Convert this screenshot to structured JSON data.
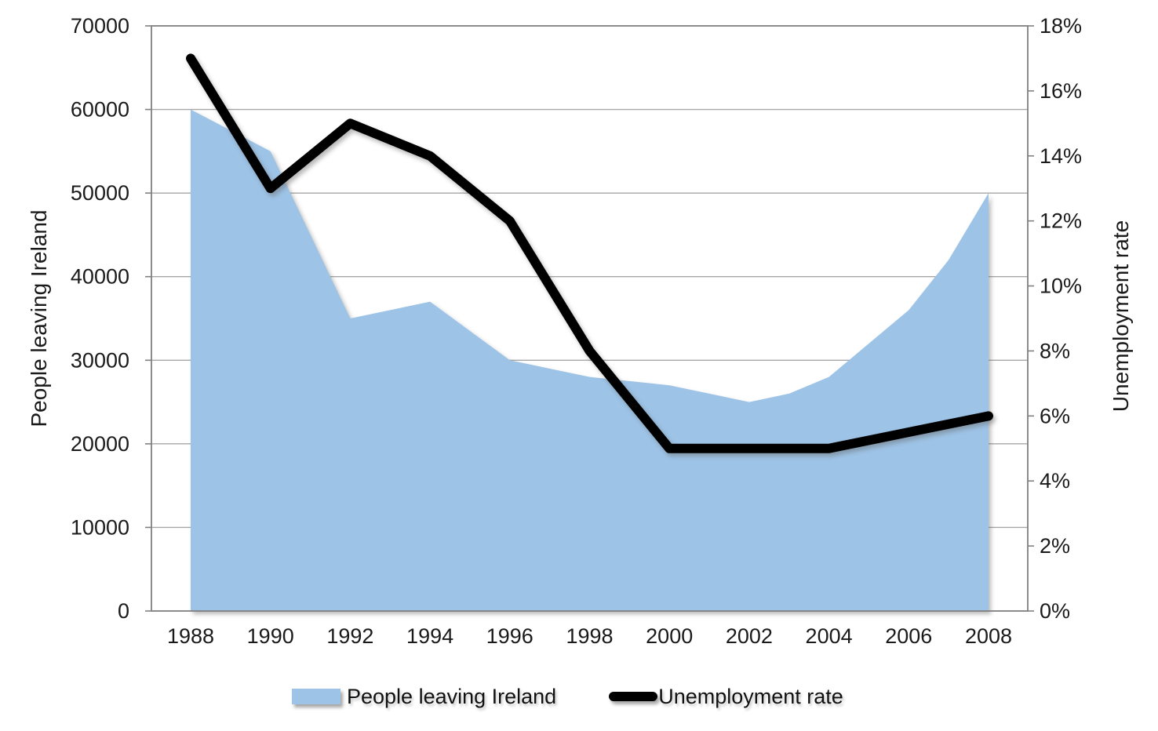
{
  "colors": {
    "area_fill": "#9DC3E6",
    "line": "#000000",
    "gridline": "#A6A6A6",
    "axis_border": "#808080",
    "tick_mark": "#808080",
    "text": "#1A1A1A",
    "background": "#FFFFFF"
  },
  "legend": {
    "position": "bottom",
    "items": [
      {
        "label": "People leaving Ireland",
        "marker": "area-swatch",
        "color": "#9DC3E6"
      },
      {
        "label": "Unemployment rate",
        "marker": "line-swatch",
        "color": "#000000"
      }
    ]
  },
  "chart_data": {
    "type": "area",
    "title": "",
    "subtitle": "",
    "grid": "horizontal",
    "legend_position": "bottom",
    "x_ticks": [
      "1988",
      "1990",
      "1992",
      "1994",
      "1996",
      "1998",
      "2000",
      "2002",
      "2004",
      "2006",
      "2008"
    ],
    "y_left": {
      "label": "People leaving Ireland",
      "min": 0,
      "max": 70000,
      "tick_step": 10000,
      "ticks": [
        "0",
        "10000",
        "20000",
        "30000",
        "40000",
        "50000",
        "60000",
        "70000"
      ]
    },
    "y_right": {
      "label": "Unemployment rate",
      "min": 0,
      "max": 18,
      "tick_step": 2,
      "ticks": [
        "0%",
        "2%",
        "4%",
        "6%",
        "8%",
        "10%",
        "12%",
        "14%",
        "16%",
        "18%"
      ]
    },
    "series": [
      {
        "name": "People leaving Ireland",
        "type": "area",
        "axis": "left",
        "color": "#9DC3E6",
        "x": [
          1988,
          1989,
          1990,
          1991,
          1992,
          1993,
          1994,
          1995,
          1996,
          1997,
          1998,
          1999,
          2000,
          2001,
          2002,
          2003,
          2004,
          2005,
          2006,
          2007,
          2008
        ],
        "values": [
          60000,
          57500,
          55000,
          45000,
          35000,
          36000,
          37000,
          33500,
          30000,
          29000,
          28000,
          27500,
          27000,
          26000,
          25000,
          26000,
          28000,
          32000,
          36000,
          42000,
          50000
        ]
      },
      {
        "name": "Unemployment rate",
        "type": "line",
        "axis": "right",
        "color": "#000000",
        "x": [
          1988,
          1990,
          1992,
          1994,
          1996,
          1998,
          2000,
          2002,
          2004,
          2006,
          2008
        ],
        "values": [
          17,
          13,
          15,
          14,
          12,
          8,
          5,
          5,
          5,
          5.5,
          6
        ]
      }
    ]
  }
}
